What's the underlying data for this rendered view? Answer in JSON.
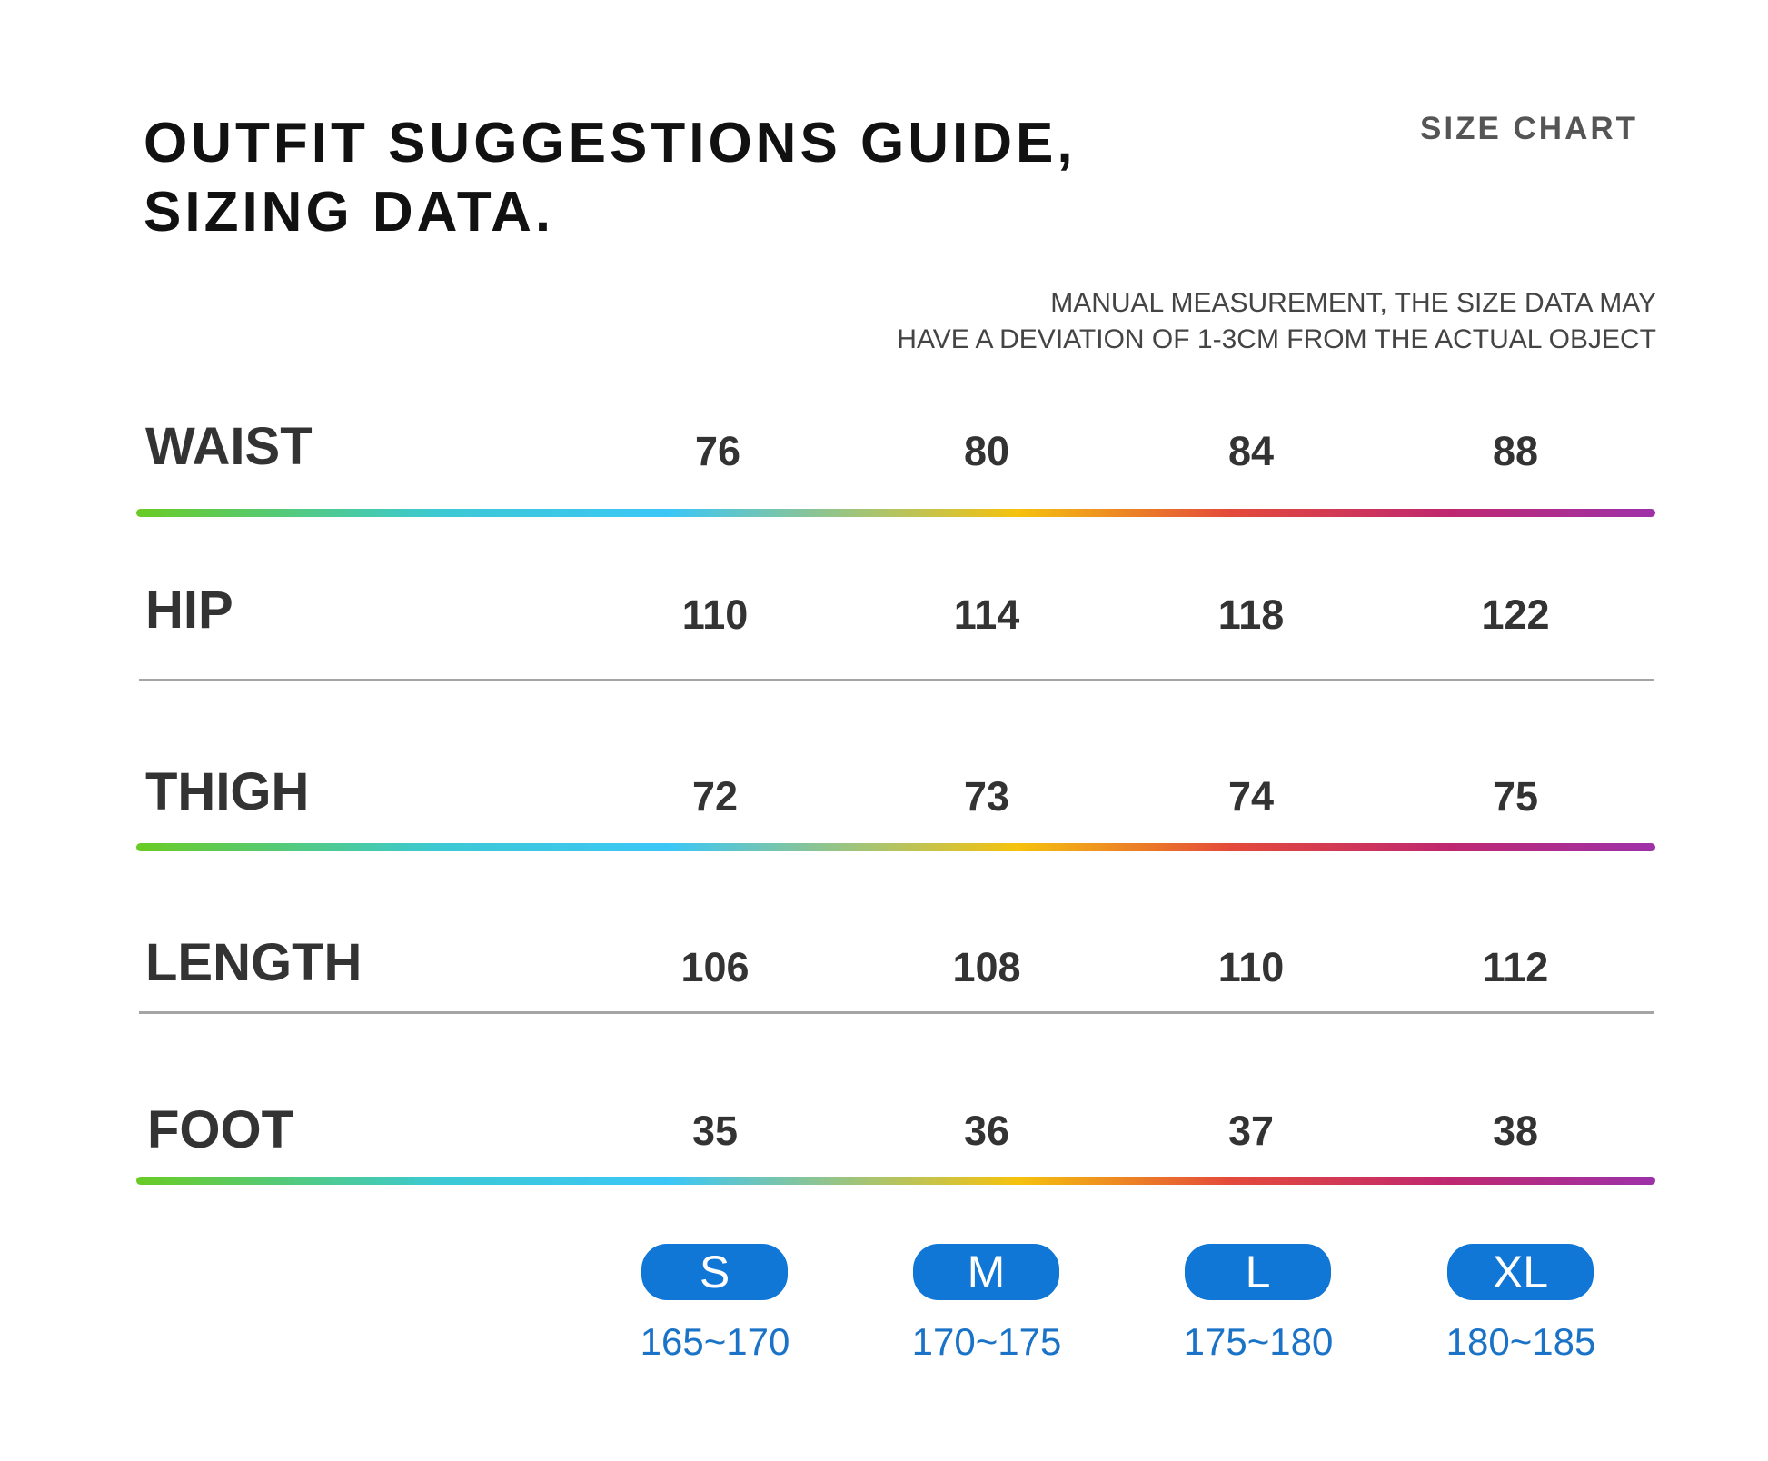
{
  "header": {
    "title_line1": "OUTFIT SUGGESTIONS GUIDE,",
    "title_line2": "SIZING DATA.",
    "size_chart_label": "SIZE CHART",
    "note_line1": "MANUAL MEASUREMENT, THE SIZE DATA MAY",
    "note_line2": "HAVE A DEVIATION OF 1-3CM FROM THE ACTUAL OBJECT"
  },
  "rows": [
    {
      "label": "WAIST",
      "values": [
        "76",
        "80",
        "84",
        "88"
      ]
    },
    {
      "label": "HIP",
      "values": [
        "110",
        "114",
        "118",
        "122"
      ]
    },
    {
      "label": "THIGH",
      "values": [
        "72",
        "73",
        "74",
        "75"
      ]
    },
    {
      "label": "LENGTH",
      "values": [
        "106",
        "108",
        "110",
        "112"
      ]
    },
    {
      "label": "FOOT",
      "values": [
        "35",
        "36",
        "37",
        "38"
      ]
    }
  ],
  "sizes": [
    {
      "label": "S",
      "height": "165~170"
    },
    {
      "label": "M",
      "height": "170~175"
    },
    {
      "label": "L",
      "height": "175~180"
    },
    {
      "label": "XL",
      "height": "180~185"
    }
  ],
  "colors": {
    "pill": "#1177d6",
    "height_text": "#1a73c6",
    "rainbow": [
      "#6acb24",
      "#3cc6f7",
      "#f5c20e",
      "#e44a3a",
      "#9d31a9"
    ]
  }
}
